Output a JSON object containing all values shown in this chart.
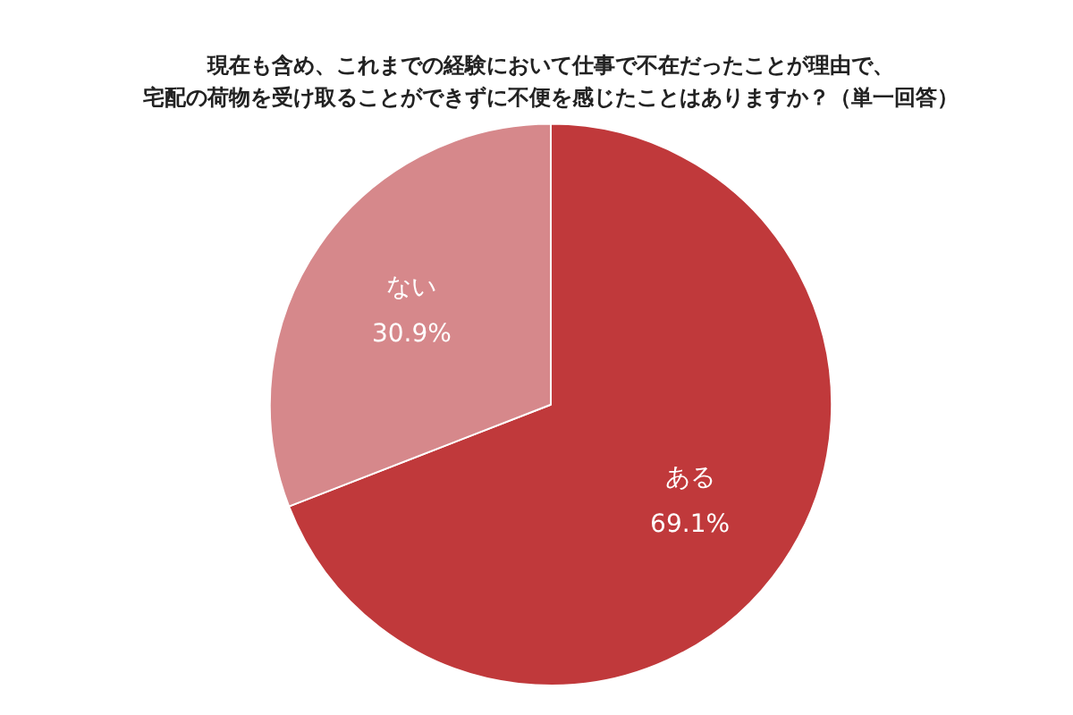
{
  "chart_data": {
    "type": "pie",
    "title": "現在も含め、これまでの経験において仕事で不在だったことが理由で、",
    "subtitle": "宅配の荷物を受け取ることができずに不便を感じたことはありますか？（単一回答）",
    "categories": [
      "ある",
      "ない"
    ],
    "values": [
      69.1,
      30.9
    ],
    "value_labels": [
      "69.1%",
      "30.9%"
    ],
    "colors": [
      "#c0393b",
      "#d6888b"
    ],
    "legend": false
  }
}
